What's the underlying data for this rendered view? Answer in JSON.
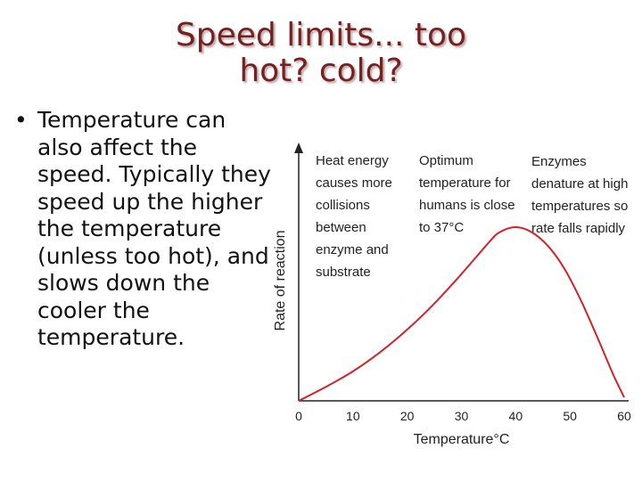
{
  "slide": {
    "title_lines": [
      "Speed limits... too",
      "hot? cold?"
    ],
    "bullet_symbol": "•",
    "bullet_text": "Temperature can also affect the speed. Typically they speed up the higher the temperature (unless too hot), and slows down the cooler the temperature."
  },
  "colors": {
    "title": "#7a1f1f",
    "curve": "#d2232a",
    "axis": "#222222"
  },
  "chart_data": {
    "type": "line",
    "xlabel": "Temperature°C",
    "ylabel": "Rate of reaction",
    "xlim": [
      0,
      60
    ],
    "x_ticks": [
      0,
      10,
      20,
      30,
      40,
      50,
      60
    ],
    "y_ticks_shown": false,
    "grid": false,
    "series": [
      {
        "x": [
          0,
          5,
          10,
          15,
          20,
          25,
          30,
          35,
          37,
          40,
          43,
          46,
          49,
          52,
          55,
          58,
          60
        ],
        "y": [
          0.0,
          0.08,
          0.17,
          0.28,
          0.41,
          0.56,
          0.73,
          0.91,
          0.97,
          1.0,
          0.97,
          0.89,
          0.76,
          0.58,
          0.37,
          0.15,
          0.02
        ]
      }
    ],
    "annotations": [
      {
        "lines": [
          "Heat energy",
          "causes more",
          "collisions",
          "between",
          "enzyme and",
          "substrate"
        ]
      },
      {
        "lines": [
          "Optimum",
          "temperature for",
          "humans is close",
          "to 37°C"
        ]
      },
      {
        "lines": [
          "Enzymes",
          "denature at high",
          "temperatures so",
          "rate falls rapidly"
        ]
      }
    ]
  }
}
